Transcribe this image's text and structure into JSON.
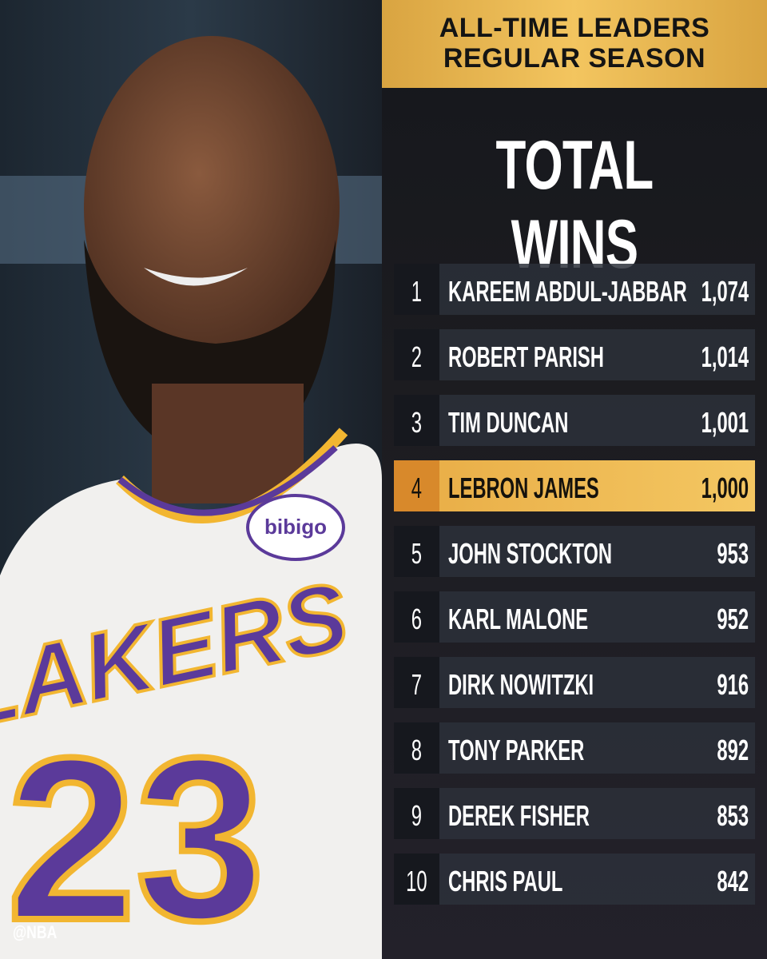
{
  "header": {
    "line1": "ALL-TIME LEADERS",
    "line2": "REGULAR SEASON"
  },
  "title": "TOTAL WINS",
  "table": {
    "highlight": 3,
    "rows": [
      [
        "1",
        "KAREEM ABDUL-JABBAR",
        "1,074"
      ],
      [
        "2",
        "ROBERT PARISH",
        "1,014"
      ],
      [
        "3",
        "TIM DUNCAN",
        "1,001"
      ],
      [
        "4",
        "LEBRON JAMES",
        "1,000"
      ],
      [
        "5",
        "JOHN STOCKTON",
        "953"
      ],
      [
        "6",
        "KARL MALONE",
        "952"
      ],
      [
        "7",
        "DIRK NOWITZKI",
        "916"
      ],
      [
        "8",
        "TONY PARKER",
        "892"
      ],
      [
        "9",
        "DEREK FISHER",
        "853"
      ],
      [
        "10",
        "CHRIS PAUL",
        "842"
      ]
    ]
  },
  "photo": {
    "jersey_team": "LAKERS",
    "jersey_number": "23",
    "patch": "bibigo"
  },
  "watermark": "@NBA"
}
